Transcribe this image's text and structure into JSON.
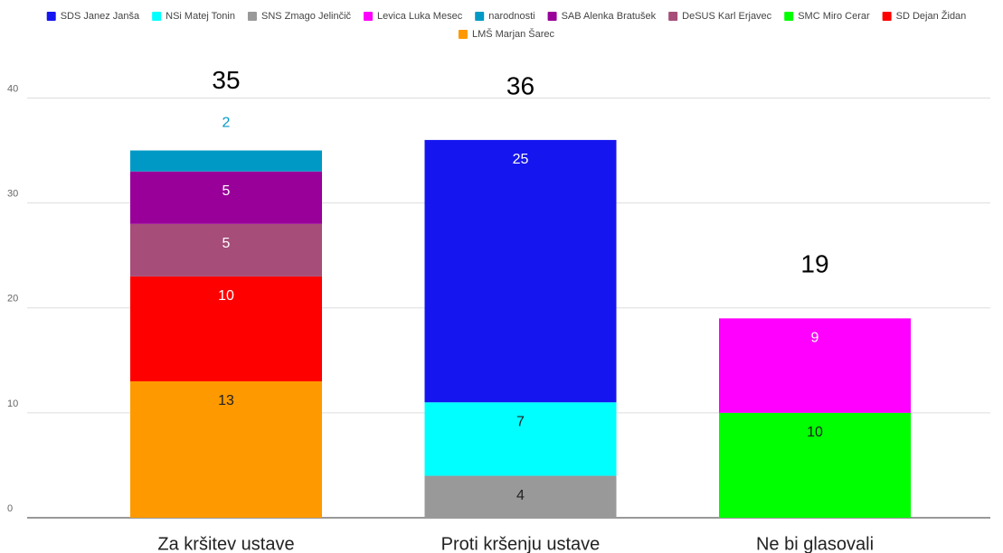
{
  "chart_data": {
    "type": "stacked_bar",
    "categories": [
      "Za kršitev ustave",
      "Proti kršenju ustave",
      "Ne bi glasovali"
    ],
    "series": [
      {
        "name": "SDS Janez Janša",
        "color": "#1515f0",
        "values": [
          null,
          25,
          null
        ]
      },
      {
        "name": "NSi Matej Tonin",
        "color": "#00ffff",
        "values": [
          null,
          7,
          null
        ]
      },
      {
        "name": "SNS Zmago Jelinčič",
        "color": "#999999",
        "values": [
          null,
          4,
          null
        ]
      },
      {
        "name": "Levica Luka Mesec",
        "color": "#ff00ff",
        "values": [
          null,
          null,
          9
        ]
      },
      {
        "name": "narodnosti",
        "color": "#0099c6",
        "values": [
          2,
          null,
          null
        ]
      },
      {
        "name": "SAB Alenka Bratušek",
        "color": "#990099",
        "values": [
          5,
          null,
          null
        ]
      },
      {
        "name": "DeSUS Karl Erjavec",
        "color": "#a64d79",
        "values": [
          5,
          null,
          null
        ]
      },
      {
        "name": "SMC Miro Cerar",
        "color": "#00ff00",
        "values": [
          null,
          null,
          10
        ]
      },
      {
        "name": "SD Dejan Židan",
        "color": "#ff0000",
        "values": [
          10,
          null,
          null
        ]
      },
      {
        "name": "LMŠ Marjan Šarec",
        "color": "#ff9900",
        "values": [
          13,
          null,
          null
        ]
      }
    ],
    "totals": [
      35,
      36,
      19
    ],
    "ylim": [
      0,
      44
    ],
    "yticks": [
      0,
      10,
      20,
      30,
      40
    ],
    "grid": true
  }
}
